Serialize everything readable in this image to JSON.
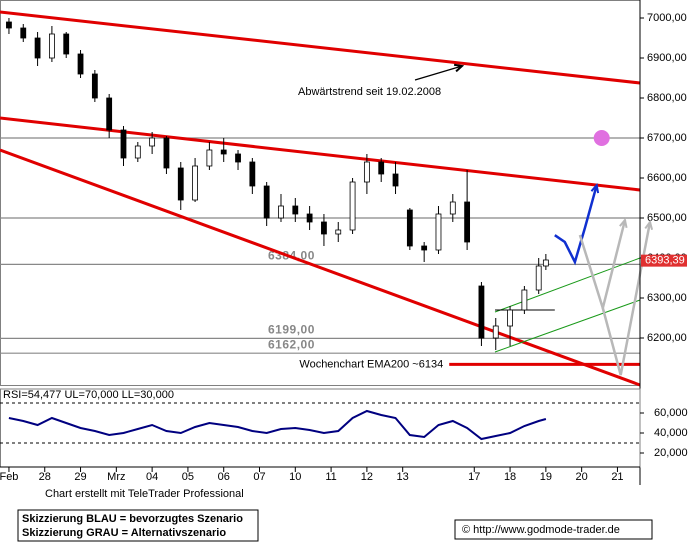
{
  "chart_data": [
    {
      "type": "candlestick",
      "x": [
        0,
        0.4,
        0.8,
        1.2,
        1.6,
        2.0,
        2.4,
        2.8,
        3.2,
        3.6,
        4.0,
        4.4,
        4.8,
        5.2,
        5.6,
        6.0,
        6.4,
        6.8,
        7.2,
        7.6,
        8.0,
        8.4,
        8.8,
        9.2,
        9.6,
        10.0,
        10.4,
        10.8,
        11.2,
        11.6,
        12.0,
        12.4,
        12.8,
        13.2,
        13.6,
        14.0,
        14.4,
        14.8,
        15.0
      ],
      "open": [
        6990,
        6975,
        6950,
        6900,
        6960,
        6910,
        6860,
        6800,
        6720,
        6650,
        6680,
        6700,
        6625,
        6545,
        6630,
        6670,
        6660,
        6640,
        6580,
        6500,
        6530,
        6510,
        6490,
        6460,
        6470,
        6590,
        6640,
        6610,
        6520,
        6430,
        6420,
        6510,
        6540,
        6330,
        6200,
        6230,
        6270,
        6320,
        6380
      ],
      "high": [
        7000,
        6985,
        6965,
        6980,
        6965,
        6920,
        6870,
        6810,
        6730,
        6690,
        6715,
        6705,
        6640,
        6650,
        6690,
        6700,
        6670,
        6650,
        6590,
        6560,
        6550,
        6530,
        6510,
        6490,
        6600,
        6660,
        6650,
        6640,
        6525,
        6440,
        6530,
        6560,
        6620,
        6340,
        6250,
        6280,
        6330,
        6400,
        6410
      ],
      "low": [
        6960,
        6940,
        6880,
        6890,
        6900,
        6850,
        6790,
        6700,
        6630,
        6640,
        6660,
        6610,
        6520,
        6540,
        6620,
        6640,
        6620,
        6560,
        6480,
        6490,
        6490,
        6470,
        6430,
        6440,
        6460,
        6560,
        6590,
        6560,
        6420,
        6390,
        6410,
        6490,
        6420,
        6180,
        6170,
        6180,
        6260,
        6310,
        6370
      ],
      "close": [
        6975,
        6950,
        6900,
        6960,
        6910,
        6860,
        6800,
        6720,
        6650,
        6680,
        6700,
        6625,
        6545,
        6630,
        6670,
        6660,
        6640,
        6580,
        6500,
        6530,
        6510,
        6490,
        6460,
        6470,
        6590,
        6640,
        6610,
        6580,
        6430,
        6420,
        6510,
        6540,
        6440,
        6200,
        6230,
        6270,
        6320,
        6380,
        6395
      ],
      "color_up": "#ffffff",
      "color_down": "#000000",
      "xlim": [
        -0.25,
        17.63
      ],
      "ylim": [
        6082.5,
        7045
      ],
      "yticks": [
        {
          "value": 6200,
          "label": "6200,00"
        },
        {
          "value": 6300,
          "label": "6300,00"
        },
        {
          "value": 6400,
          "label": "6400,00"
        },
        {
          "value": 6500,
          "label": "6500,00"
        },
        {
          "value": 6600,
          "label": "6600,00"
        },
        {
          "value": 6700,
          "label": "6700,00"
        },
        {
          "value": 6800,
          "label": "6800,00"
        },
        {
          "value": 6900,
          "label": "6900,00"
        },
        {
          "value": 7000,
          "label": "7000,00"
        }
      ],
      "levels": [
        6700,
        6500,
        {
          "value": 6384,
          "label": "6384,00"
        },
        {
          "value": 6199,
          "label": "6199,00"
        },
        {
          "value": 6162,
          "label": "6162,00"
        }
      ],
      "trendlines": [
        {
          "color": "#e00000",
          "x": [
            -0.25,
            17.63
          ],
          "values": [
            7015,
            6837.5
          ]
        },
        {
          "color": "#e00000",
          "x": [
            -0.25,
            17.63
          ],
          "values": [
            6750,
            6570
          ]
        },
        {
          "color": "#e00000",
          "x": [
            -0.25,
            17.63
          ],
          "values": [
            6670,
            6082.5
          ]
        },
        {
          "color": "#1a9a1a",
          "x": [
            13.58,
            17.63
          ],
          "values": [
            6265,
            6400
          ]
        },
        {
          "color": "#1a9a1a",
          "x": [
            13.58,
            17.63
          ],
          "values": [
            6165,
            6295
          ]
        },
        {
          "color": "#000000",
          "x": [
            13.58,
            15.25
          ],
          "values": [
            6270,
            6270
          ]
        }
      ],
      "drawings": [
        {
          "color": "#1030d0",
          "x": [
            15.25,
            15.53,
            15.81,
            16.09,
            16.42
          ],
          "values": [
            6457,
            6440,
            6390,
            6475,
            6582
          ]
        },
        {
          "color": "#b8b8b8",
          "x": [
            15.95,
            16.59,
            17.21
          ],
          "values": [
            6457.5,
            6275,
            6495
          ]
        },
        {
          "color": "#b8b8b8",
          "x": [
            16.59,
            17.09,
            17.91
          ],
          "values": [
            6275,
            6107.5,
            6490
          ]
        }
      ],
      "target": {
        "x": 16.56,
        "value": 6700,
        "color": "#e070e0"
      },
      "ema": {
        "value": 6134,
        "label": "Wochenchart EMA200 ~6134",
        "x": [
          12.3,
          17.63
        ]
      },
      "last": {
        "value": 6393.39,
        "label": "6393,39"
      },
      "annotation": "Abwärtstrend seit 19.02.2008"
    },
    {
      "type": "line",
      "title": "RSI=54,477 UL=70,000 LL=30,000",
      "color": "#000080",
      "x": [
        0,
        0.4,
        0.8,
        1.2,
        1.6,
        2.0,
        2.4,
        2.8,
        3.2,
        3.6,
        4.0,
        4.4,
        4.8,
        5.2,
        5.6,
        6.0,
        6.4,
        6.8,
        7.2,
        7.6,
        8.0,
        8.4,
        8.8,
        9.2,
        9.6,
        10.0,
        10.4,
        10.8,
        11.2,
        11.6,
        12.0,
        12.4,
        12.8,
        13.2,
        13.6,
        14.0,
        14.4,
        14.8,
        15.0
      ],
      "values": [
        55,
        52,
        48,
        55,
        50,
        45,
        42,
        38,
        40,
        44,
        48,
        42,
        40,
        46,
        50,
        48,
        46,
        42,
        40,
        44,
        45,
        43,
        40,
        42,
        55,
        62,
        58,
        55,
        38,
        36,
        48,
        52,
        45,
        34,
        37,
        40,
        47,
        52,
        54
      ],
      "bands": [
        70,
        30
      ],
      "xlim": [
        -0.25,
        17.63
      ],
      "ylim": [
        6,
        84
      ],
      "yticks": [
        {
          "value": 20,
          "label": "20,000"
        },
        {
          "value": 40,
          "label": "40,000"
        },
        {
          "value": 60,
          "label": "60,000"
        }
      ],
      "xticks": [
        {
          "value": 0,
          "label": "Feb"
        },
        {
          "value": 1,
          "label": "28"
        },
        {
          "value": 2,
          "label": "29"
        },
        {
          "value": 3,
          "label": "Mrz"
        },
        {
          "value": 4,
          "label": "04"
        },
        {
          "value": 5,
          "label": "05"
        },
        {
          "value": 6,
          "label": "06"
        },
        {
          "value": 7,
          "label": "07"
        },
        {
          "value": 8,
          "label": "10"
        },
        {
          "value": 9,
          "label": "11"
        },
        {
          "value": 10,
          "label": "12"
        },
        {
          "value": 11,
          "label": "13"
        },
        {
          "value": 13,
          "label": "17"
        },
        {
          "value": 14,
          "label": "18"
        },
        {
          "value": 15,
          "label": "19"
        },
        {
          "value": 16,
          "label": "20"
        },
        {
          "value": 17,
          "label": "21"
        }
      ]
    }
  ],
  "footer": {
    "credit": "Chart erstellt mit TeleTrader Professional",
    "legend": [
      "Skizzierung BLAU = bevorzugtes Szenario",
      "Skizzierung GRAU = Alternativszenario"
    ],
    "copyright": "© http://www.godmode-trader.de"
  }
}
